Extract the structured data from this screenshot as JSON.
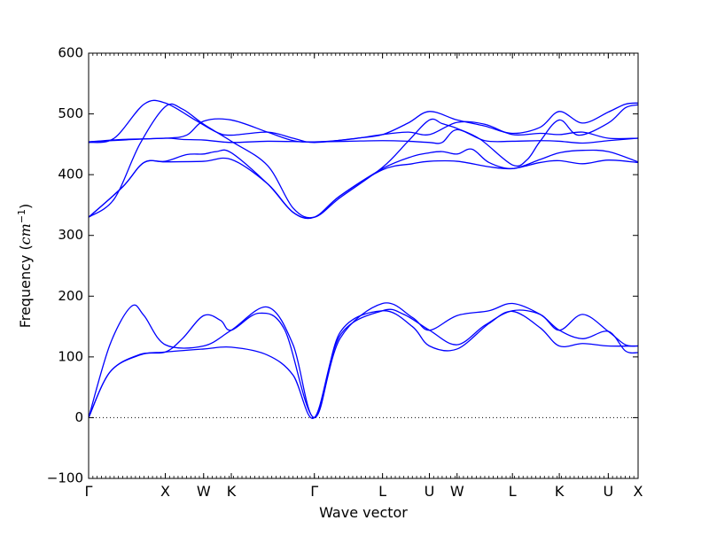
{
  "chart_data": {
    "type": "line",
    "title": "",
    "xlabel": "Wave vector",
    "ylabel": "Frequency ($cm^{-1}$)",
    "ylabel_parts": {
      "main": "Frequency (",
      "base": "cm",
      "sup": "−1",
      "close": ")"
    },
    "xlim": [
      0,
      12.9
    ],
    "ylim": [
      -100,
      600
    ],
    "yticks": [
      -100,
      0,
      100,
      200,
      300,
      400,
      500,
      600
    ],
    "yticks_labels": [
      "−100",
      "0",
      "100",
      "200",
      "300",
      "400",
      "500",
      "600"
    ],
    "xticks": [
      {
        "pos": 0.0,
        "label": "Γ"
      },
      {
        "pos": 1.8,
        "label": "X"
      },
      {
        "pos": 2.7,
        "label": "W"
      },
      {
        "pos": 3.35,
        "label": "K"
      },
      {
        "pos": 5.3,
        "label": "Γ"
      },
      {
        "pos": 6.9,
        "label": "L"
      },
      {
        "pos": 8.0,
        "label": "U"
      },
      {
        "pos": 8.65,
        "label": "W"
      },
      {
        "pos": 9.95,
        "label": "L"
      },
      {
        "pos": 11.05,
        "label": "K"
      },
      {
        "pos": 12.2,
        "label": "U"
      },
      {
        "pos": 12.9,
        "label": "X"
      }
    ],
    "zero_line": {
      "y": 0,
      "style": "dotted",
      "color": "#000000"
    },
    "line_color": "#0000ff",
    "series": [
      {
        "values": [
          [
            0,
            0
          ],
          [
            0.5,
            120
          ],
          [
            1.0,
            183
          ],
          [
            1.3,
            168
          ],
          [
            1.8,
            120
          ],
          [
            2.7,
            118
          ],
          [
            3.35,
            144
          ],
          [
            4.2,
            182
          ],
          [
            4.8,
            120
          ],
          [
            5.3,
            0
          ],
          [
            5.9,
            130
          ],
          [
            6.9,
            188
          ],
          [
            7.6,
            165
          ],
          [
            8.0,
            144
          ],
          [
            8.65,
            168
          ],
          [
            9.4,
            176
          ],
          [
            9.95,
            188
          ],
          [
            10.6,
            170
          ],
          [
            11.05,
            144
          ],
          [
            11.6,
            130
          ],
          [
            12.2,
            142
          ],
          [
            12.6,
            110
          ],
          [
            12.9,
            107
          ]
        ]
      },
      {
        "values": [
          [
            0,
            0
          ],
          [
            0.5,
            75
          ],
          [
            1.2,
            104
          ],
          [
            1.8,
            108
          ],
          [
            2.2,
            130
          ],
          [
            2.7,
            168
          ],
          [
            3.1,
            160
          ],
          [
            3.35,
            144
          ],
          [
            4.0,
            172
          ],
          [
            4.6,
            145
          ],
          [
            5.3,
            0
          ],
          [
            5.9,
            140
          ],
          [
            6.9,
            176
          ],
          [
            7.6,
            150
          ],
          [
            8.0,
            118
          ],
          [
            8.65,
            113
          ],
          [
            9.4,
            155
          ],
          [
            9.95,
            175
          ],
          [
            10.6,
            148
          ],
          [
            11.05,
            118
          ],
          [
            11.6,
            122
          ],
          [
            12.2,
            118
          ],
          [
            12.9,
            118
          ]
        ]
      },
      {
        "values": [
          [
            0,
            0
          ],
          [
            0.5,
            75
          ],
          [
            1.2,
            103
          ],
          [
            1.8,
            108
          ],
          [
            2.7,
            113
          ],
          [
            3.35,
            116
          ],
          [
            4.2,
            103
          ],
          [
            4.8,
            70
          ],
          [
            5.3,
            0
          ],
          [
            5.9,
            135
          ],
          [
            6.9,
            176
          ],
          [
            7.4,
            170
          ],
          [
            8.0,
            144
          ],
          [
            8.65,
            120
          ],
          [
            9.3,
            152
          ],
          [
            9.95,
            176
          ],
          [
            10.6,
            170
          ],
          [
            11.05,
            144
          ],
          [
            11.6,
            170
          ],
          [
            12.2,
            142
          ],
          [
            12.6,
            120
          ],
          [
            12.9,
            118
          ]
        ]
      },
      {
        "values": [
          [
            0,
            330
          ],
          [
            0.8,
            380
          ],
          [
            1.3,
            420
          ],
          [
            1.8,
            421
          ],
          [
            2.7,
            422
          ],
          [
            3.35,
            425
          ],
          [
            4.2,
            385
          ],
          [
            4.8,
            338
          ],
          [
            5.3,
            330
          ],
          [
            5.9,
            365
          ],
          [
            6.9,
            408
          ],
          [
            7.6,
            418
          ],
          [
            8.0,
            422
          ],
          [
            8.65,
            422
          ],
          [
            9.4,
            413
          ],
          [
            9.95,
            410
          ],
          [
            10.6,
            420
          ],
          [
            11.05,
            423
          ],
          [
            11.6,
            418
          ],
          [
            12.2,
            424
          ],
          [
            12.9,
            420
          ]
        ]
      },
      {
        "values": [
          [
            0,
            330
          ],
          [
            0.8,
            380
          ],
          [
            1.3,
            420
          ],
          [
            1.8,
            422
          ],
          [
            2.3,
            433
          ],
          [
            2.7,
            434
          ],
          [
            3.0,
            438
          ],
          [
            3.35,
            436
          ],
          [
            4.2,
            385
          ],
          [
            4.8,
            338
          ],
          [
            5.3,
            330
          ],
          [
            5.9,
            365
          ],
          [
            6.9,
            410
          ],
          [
            7.6,
            430
          ],
          [
            8.0,
            436
          ],
          [
            8.3,
            438
          ],
          [
            8.65,
            434
          ],
          [
            9.0,
            442
          ],
          [
            9.4,
            420
          ],
          [
            9.95,
            410
          ],
          [
            10.6,
            425
          ],
          [
            11.05,
            436
          ],
          [
            11.6,
            440
          ],
          [
            12.2,
            438
          ],
          [
            12.9,
            421
          ]
        ]
      },
      {
        "values": [
          [
            0,
            330
          ],
          [
            0.6,
            360
          ],
          [
            1.2,
            450
          ],
          [
            1.8,
            512
          ],
          [
            2.2,
            508
          ],
          [
            2.7,
            483
          ],
          [
            3.35,
            455
          ],
          [
            4.2,
            415
          ],
          [
            4.8,
            345
          ],
          [
            5.3,
            330
          ],
          [
            5.9,
            362
          ],
          [
            6.9,
            412
          ],
          [
            7.5,
            455
          ],
          [
            8.0,
            490
          ],
          [
            8.3,
            484
          ],
          [
            8.65,
            476
          ],
          [
            9.2,
            458
          ],
          [
            9.95,
            416
          ],
          [
            10.3,
            425
          ],
          [
            10.6,
            455
          ],
          [
            11.05,
            490
          ],
          [
            11.5,
            465
          ],
          [
            12.2,
            485
          ],
          [
            12.6,
            510
          ],
          [
            12.9,
            515
          ]
        ]
      },
      {
        "values": [
          [
            0,
            453
          ],
          [
            0.6,
            460
          ],
          [
            1.3,
            516
          ],
          [
            1.8,
            518
          ],
          [
            2.5,
            490
          ],
          [
            3.0,
            470
          ],
          [
            3.35,
            465
          ],
          [
            4.2,
            470
          ],
          [
            4.8,
            460
          ],
          [
            5.3,
            453
          ],
          [
            6.3,
            460
          ],
          [
            6.9,
            466
          ],
          [
            7.5,
            485
          ],
          [
            8.0,
            504
          ],
          [
            8.65,
            490
          ],
          [
            9.3,
            480
          ],
          [
            9.95,
            468
          ],
          [
            10.6,
            478
          ],
          [
            11.05,
            504
          ],
          [
            11.6,
            485
          ],
          [
            12.2,
            503
          ],
          [
            12.6,
            516
          ],
          [
            12.9,
            518
          ]
        ]
      },
      {
        "values": [
          [
            0,
            454
          ],
          [
            0.8,
            458
          ],
          [
            1.8,
            460
          ],
          [
            2.3,
            465
          ],
          [
            2.7,
            488
          ],
          [
            3.35,
            490
          ],
          [
            4.2,
            470
          ],
          [
            4.8,
            456
          ],
          [
            5.3,
            454
          ],
          [
            6.1,
            458
          ],
          [
            6.9,
            466
          ],
          [
            7.5,
            470
          ],
          [
            8.0,
            466
          ],
          [
            8.65,
            486
          ],
          [
            9.3,
            483
          ],
          [
            9.95,
            466
          ],
          [
            10.6,
            468
          ],
          [
            11.05,
            466
          ],
          [
            11.6,
            470
          ],
          [
            12.2,
            460
          ],
          [
            12.9,
            460
          ]
        ]
      },
      {
        "values": [
          [
            0,
            454
          ],
          [
            0.8,
            457
          ],
          [
            1.8,
            460
          ],
          [
            2.2,
            458
          ],
          [
            2.7,
            457
          ],
          [
            3.35,
            453
          ],
          [
            4.2,
            455
          ],
          [
            5.3,
            454
          ],
          [
            6.1,
            455
          ],
          [
            6.9,
            456
          ],
          [
            7.5,
            455
          ],
          [
            8.0,
            453
          ],
          [
            8.3,
            453
          ],
          [
            8.65,
            474
          ],
          [
            9.3,
            456
          ],
          [
            9.95,
            455
          ],
          [
            10.6,
            456
          ],
          [
            11.05,
            455
          ],
          [
            11.6,
            452
          ],
          [
            12.2,
            456
          ],
          [
            12.9,
            460
          ]
        ]
      }
    ]
  }
}
